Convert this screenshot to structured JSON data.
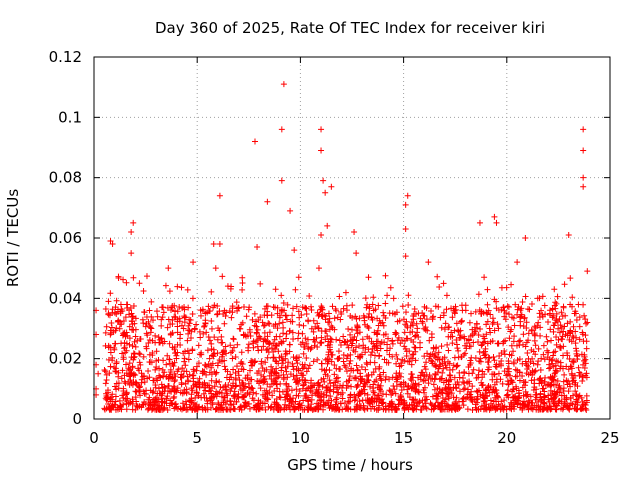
{
  "chart_data": {
    "type": "scatter",
    "title": "Day 360 of 2025, Rate Of TEC Index for receiver kiri",
    "xlabel": "GPS time / hours",
    "ylabel": "ROTI / TECUs",
    "xlim": [
      0,
      25
    ],
    "ylim": [
      0,
      0.12
    ],
    "xticks": [
      0,
      5,
      10,
      15,
      20,
      25
    ],
    "xtick_labels": [
      "0",
      "5",
      "10",
      "15",
      "20",
      "25"
    ],
    "yticks": [
      0,
      0.02,
      0.04,
      0.06,
      0.08,
      0.1,
      0.12
    ],
    "ytick_labels": [
      "0",
      "0.02",
      "0.04",
      "0.06",
      "0.08",
      "0.1",
      "0.12"
    ],
    "grid": true,
    "marker": "+",
    "series": [
      {
        "name": "ROTI",
        "color": "#ff0000",
        "points": [
          [
            9.2,
            0.111
          ],
          [
            9.1,
            0.096
          ],
          [
            11.0,
            0.096
          ],
          [
            23.7,
            0.096
          ],
          [
            7.8,
            0.092
          ],
          [
            23.7,
            0.089
          ],
          [
            11.0,
            0.089
          ],
          [
            23.7,
            0.08
          ],
          [
            9.1,
            0.079
          ],
          [
            11.1,
            0.079
          ],
          [
            11.5,
            0.077
          ],
          [
            23.7,
            0.077
          ],
          [
            11.2,
            0.075
          ],
          [
            6.1,
            0.074
          ],
          [
            15.2,
            0.074
          ],
          [
            8.4,
            0.072
          ],
          [
            15.1,
            0.071
          ],
          [
            9.5,
            0.069
          ],
          [
            19.4,
            0.067
          ],
          [
            19.5,
            0.065
          ],
          [
            1.9,
            0.065
          ],
          [
            18.7,
            0.065
          ],
          [
            11.3,
            0.064
          ],
          [
            15.1,
            0.063
          ],
          [
            1.8,
            0.062
          ],
          [
            12.6,
            0.062
          ],
          [
            23.0,
            0.061
          ],
          [
            11.0,
            0.061
          ],
          [
            20.9,
            0.06
          ],
          [
            0.8,
            0.059
          ],
          [
            0.9,
            0.058
          ],
          [
            5.8,
            0.058
          ],
          [
            6.1,
            0.058
          ],
          [
            7.9,
            0.057
          ],
          [
            9.7,
            0.056
          ],
          [
            12.7,
            0.055
          ],
          [
            1.8,
            0.055
          ],
          [
            15.1,
            0.054
          ],
          [
            20.5,
            0.052
          ],
          [
            16.2,
            0.052
          ],
          [
            4.8,
            0.052
          ],
          [
            3.6,
            0.05
          ],
          [
            5.9,
            0.05
          ],
          [
            10.9,
            0.05
          ],
          [
            23.9,
            0.049
          ],
          [
            18.9,
            0.047
          ],
          [
            13.3,
            0.047
          ],
          [
            2.2,
            0.045
          ],
          [
            22.3,
            0.043
          ],
          [
            8.8,
            0.043
          ],
          [
            0.7,
            0.039
          ],
          [
            0.1,
            0.036
          ],
          [
            0.1,
            0.028
          ],
          [
            0.1,
            0.018
          ],
          [
            0.1,
            0.01
          ],
          [
            0.1,
            0.008
          ],
          [
            0.2,
            0.015
          ],
          [
            21.5,
            0.04
          ],
          [
            17.1,
            0.041
          ],
          [
            14.2,
            0.041
          ]
        ]
      }
    ],
    "dense_band": {
      "series": "ROTI",
      "x_range": [
        0.5,
        23.9
      ],
      "y_min": 0.003,
      "y_max_typical": 0.038
    }
  }
}
